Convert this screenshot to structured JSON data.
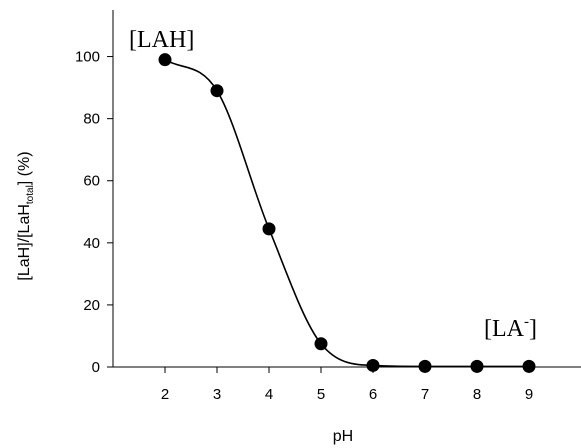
{
  "chart_data": {
    "type": "scatter",
    "xlabel": "pH",
    "ylabel": {
      "main": "[LaH]/[LaH",
      "sub": "total",
      "suffix": "] (%)"
    },
    "xlim": [
      1,
      10
    ],
    "ylim": [
      0,
      115
    ],
    "xticks": [
      2,
      3,
      4,
      5,
      6,
      7,
      8,
      9
    ],
    "yticks": [
      0,
      20,
      40,
      60,
      80,
      100
    ],
    "grid": false,
    "series": [
      {
        "x": [
          2,
          3,
          4,
          5,
          6,
          7,
          8,
          9
        ],
        "y": [
          99,
          89,
          44.5,
          7.5,
          0.5,
          0.2,
          0.2,
          0.2
        ],
        "marker": "filled-circle",
        "line": "smooth",
        "color": "#000000"
      }
    ],
    "annotations": [
      {
        "label": "[LAH]",
        "x": 2.5,
        "y": 108
      },
      {
        "label": "[LA",
        "sup": "-",
        "suffix": "]",
        "x": 8.2,
        "y": 12
      }
    ]
  }
}
